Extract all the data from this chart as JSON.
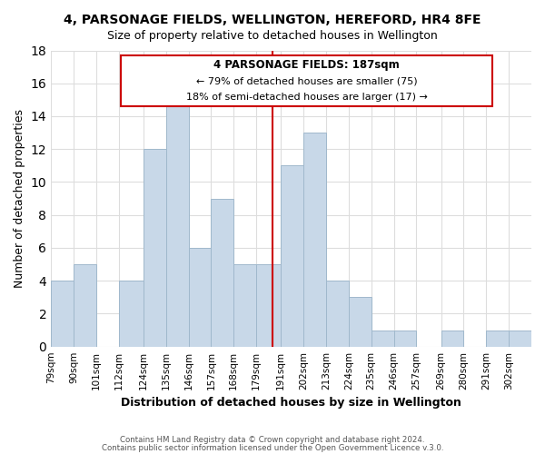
{
  "title": "4, PARSONAGE FIELDS, WELLINGTON, HEREFORD, HR4 8FE",
  "subtitle": "Size of property relative to detached houses in Wellington",
  "xlabel": "Distribution of detached houses by size in Wellington",
  "ylabel": "Number of detached properties",
  "footer_lines": [
    "Contains HM Land Registry data © Crown copyright and database right 2024.",
    "Contains public sector information licensed under the Open Government Licence v.3.0."
  ],
  "bin_labels": [
    "79sqm",
    "90sqm",
    "101sqm",
    "112sqm",
    "124sqm",
    "135sqm",
    "146sqm",
    "157sqm",
    "168sqm",
    "179sqm",
    "191sqm",
    "202sqm",
    "213sqm",
    "224sqm",
    "235sqm",
    "246sqm",
    "257sqm",
    "269sqm",
    "280sqm",
    "291sqm",
    "302sqm"
  ],
  "bar_heights": [
    4,
    5,
    0,
    4,
    12,
    15,
    6,
    9,
    5,
    5,
    11,
    13,
    4,
    3,
    1,
    1,
    0,
    1,
    0,
    1,
    1
  ],
  "bar_edges": [
    79,
    90,
    101,
    112,
    124,
    135,
    146,
    157,
    168,
    179,
    191,
    202,
    213,
    224,
    235,
    246,
    257,
    269,
    280,
    291,
    302,
    313
  ],
  "bar_color": "#c8d8e8",
  "bar_edgecolor": "#a0b8cc",
  "property_line_x": 187,
  "property_line_color": "#cc0000",
  "annotation_title": "4 PARSONAGE FIELDS: 187sqm",
  "annotation_line1": "← 79% of detached houses are smaller (75)",
  "annotation_line2": "18% of semi-detached houses are larger (17) →",
  "annotation_box_edgecolor": "#cc0000",
  "ylim": [
    0,
    18
  ],
  "yticks": [
    0,
    2,
    4,
    6,
    8,
    10,
    12,
    14,
    16,
    18
  ],
  "bg_color": "#ffffff",
  "grid_color": "#dddddd"
}
